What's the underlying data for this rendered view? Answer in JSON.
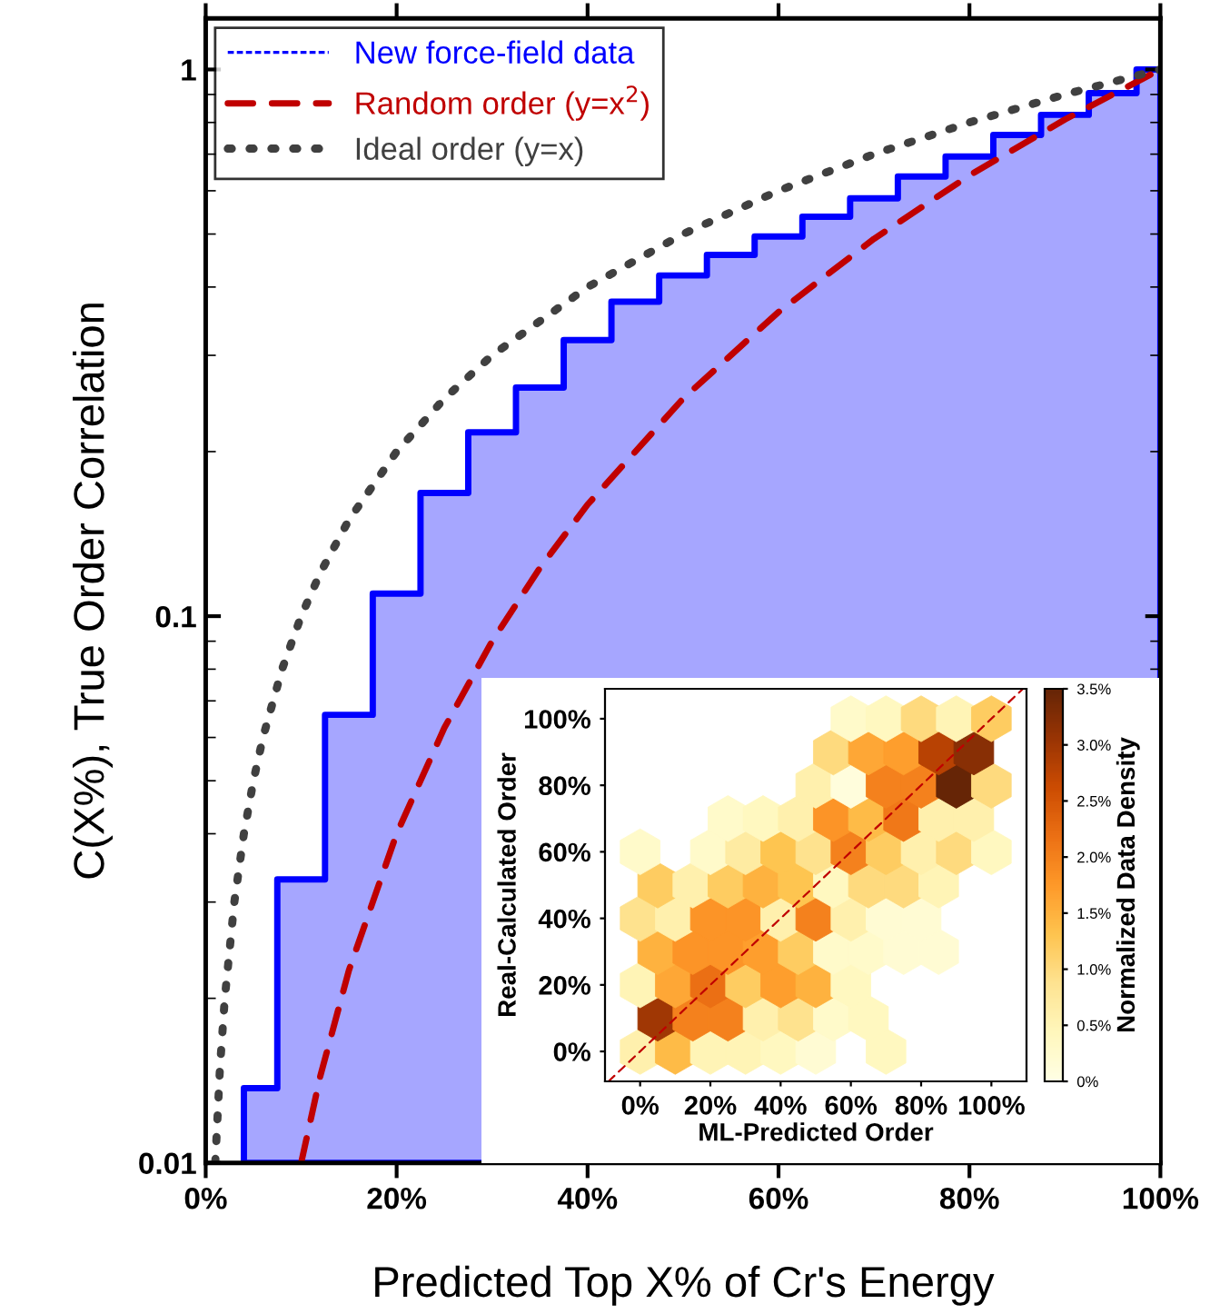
{
  "chart_data": [
    {
      "type": "step",
      "xlabel": "Predicted Top X% of Cr's Energy",
      "ylabel": "C(X%), True Order Correlation",
      "log": "y",
      "xlim": [
        0,
        100
      ],
      "ylim": [
        0.01,
        1.24
      ],
      "xticks": [
        {
          "value": 0,
          "label": "0%"
        },
        {
          "value": 20,
          "label": "20%"
        },
        {
          "value": 40,
          "label": "40%"
        },
        {
          "value": 60,
          "label": "60%"
        },
        {
          "value": 80,
          "label": "80%"
        },
        {
          "value": 100,
          "label": "100%"
        }
      ],
      "yticks": [
        0.01,
        0.1,
        1
      ],
      "legend": "top left",
      "grid": false,
      "series": [
        {
          "name": "New force-field data",
          "type": "area",
          "color": "#0000ff",
          "x": [
            4,
            7.5,
            12.5,
            17.5,
            22.5,
            27.5,
            32.5,
            37.5,
            42.5,
            47.5,
            52.5,
            57.5,
            62.5,
            67.5,
            72.5,
            77.5,
            82.5,
            87.5,
            92.5,
            97.5,
            100
          ],
          "values": [
            0.0137,
            0.033,
            0.066,
            0.11,
            0.168,
            0.217,
            0.262,
            0.32,
            0.376,
            0.42,
            0.458,
            0.495,
            0.538,
            0.581,
            0.637,
            0.693,
            0.759,
            0.826,
            0.905,
            1.0,
            1.0
          ]
        },
        {
          "name": "Random order (y=x$^{2}$)",
          "type": "line",
          "line_style": "dashed",
          "color": "#c00000",
          "x": [
            10,
            12,
            15,
            20,
            25,
            30,
            35,
            40,
            50,
            60,
            70,
            80,
            90,
            100
          ],
          "values": [
            0.01,
            0.0144,
            0.0225,
            0.04,
            0.0625,
            0.09,
            0.1225,
            0.16,
            0.25,
            0.36,
            0.49,
            0.64,
            0.81,
            1.0
          ]
        },
        {
          "name": "Ideal order (y=x)",
          "type": "line",
          "line_style": "dotted",
          "color": "#404040",
          "x": [
            1,
            1.5,
            2,
            3,
            4,
            5,
            6,
            8,
            10,
            12,
            15,
            20,
            25,
            30,
            40,
            50,
            60,
            70,
            80,
            90,
            100
          ],
          "values": [
            0.01,
            0.015,
            0.02,
            0.03,
            0.04,
            0.05,
            0.06,
            0.08,
            0.1,
            0.12,
            0.15,
            0.2,
            0.25,
            0.3,
            0.4,
            0.5,
            0.6,
            0.7,
            0.8,
            0.9,
            1.0
          ]
        }
      ]
    },
    {
      "type": "scatter",
      "xlabel": "ML-Predicted Order",
      "ylabel": "Real-Calculated Order",
      "clabel": "Normalized Data Density",
      "xlim": [
        -10,
        110
      ],
      "ylim": [
        -9,
        109
      ],
      "xticks": [
        {
          "value": 0,
          "label": "0%"
        },
        {
          "value": 20,
          "label": "20%"
        },
        {
          "value": 40,
          "label": "40%"
        },
        {
          "value": 60,
          "label": "60%"
        },
        {
          "value": 80,
          "label": "80%"
        },
        {
          "value": 100,
          "label": "100%"
        }
      ],
      "yticks": [
        {
          "value": 0,
          "label": "0%"
        },
        {
          "value": 20,
          "label": "20%"
        },
        {
          "value": 40,
          "label": "40%"
        },
        {
          "value": 60,
          "label": "60%"
        },
        {
          "value": 80,
          "label": "80%"
        },
        {
          "value": 100,
          "label": "100%"
        }
      ],
      "clim": [
        0,
        3.5
      ],
      "cticks": [
        {
          "value": 0,
          "label": "0%"
        },
        {
          "value": 0.5,
          "label": "0.5%"
        },
        {
          "value": 1,
          "label": "1.0%"
        },
        {
          "value": 1.5,
          "label": "1.5%"
        },
        {
          "value": 2,
          "label": "2.0%"
        },
        {
          "value": 2.5,
          "label": "2.5%"
        },
        {
          "value": 3,
          "label": "3.0%"
        },
        {
          "value": 3.5,
          "label": "3.5%"
        }
      ],
      "grid": false,
      "series": [
        {
          "x": [
            0,
            10,
            20,
            30,
            40,
            50,
            70,
            5,
            15,
            25,
            35,
            45,
            55,
            65,
            0,
            10,
            20,
            30,
            40,
            50,
            60,
            5,
            15,
            25,
            35,
            45,
            55,
            65,
            75,
            85,
            0,
            10,
            20,
            30,
            40,
            50,
            60,
            70,
            80,
            5,
            15,
            25,
            35,
            45,
            55,
            65,
            75,
            85,
            0,
            20,
            30,
            40,
            50,
            60,
            70,
            80,
            90,
            100,
            25,
            35,
            45,
            55,
            65,
            75,
            85,
            95,
            50,
            60,
            70,
            80,
            90,
            100,
            55,
            65,
            75,
            85,
            95,
            60,
            70,
            80,
            90,
            100
          ],
          "values": [
            0,
            0,
            0,
            0,
            0,
            0,
            0,
            10,
            10,
            10,
            10,
            10,
            10,
            10,
            20,
            20,
            20,
            20,
            20,
            20,
            20,
            30,
            30,
            30,
            30,
            30,
            30,
            30,
            30,
            30,
            40,
            40,
            40,
            40,
            40,
            40,
            40,
            40,
            40,
            50,
            50,
            50,
            50,
            50,
            50,
            50,
            50,
            50,
            60,
            60,
            60,
            60,
            60,
            60,
            60,
            60,
            60,
            60,
            70,
            70,
            70,
            70,
            70,
            70,
            70,
            70,
            80,
            80,
            80,
            80,
            80,
            80,
            90,
            90,
            90,
            90,
            90,
            100,
            100,
            100,
            100,
            100
          ],
          "colors": [
            "#fff0ac",
            "#febb47",
            "#fff4b6",
            "#fff4b6",
            "#fff8bf",
            "#fffbd2",
            "#fff8bf",
            "#a03704",
            "#f4821d",
            "#f4821d",
            "#fff0ac",
            "#fee18d",
            "#fff9c9",
            "#fff8bf",
            "#fff4b6",
            "#fea836",
            "#eb6f13",
            "#fecc60",
            "#fe9e2d",
            "#feb23f",
            "#fff8bf",
            "#feb23f",
            "#fc9427",
            "#fc9427",
            "#fe9e2d",
            "#fecc60",
            "#fff9c9",
            "#fff9c9",
            "#fffbd2",
            "#fffbd2",
            "#fee18d",
            "#fff0ac",
            "#fc9427",
            "#fc9427",
            "#fff0ac",
            "#f4821d",
            "#fff0ac",
            "#fffbd2",
            "#fffbd2",
            "#fecc60",
            "#fff0ac",
            "#fecc60",
            "#feb23f",
            "#fec551",
            "#fff8bf",
            "#feda7e",
            "#feda7e",
            "#fff4b6",
            "#fff9c9",
            "#fff9c9",
            "#feeba1",
            "#fec551",
            "#fee18d",
            "#f4821d",
            "#fecc60",
            "#fff0ac",
            "#feda7e",
            "#fff8bf",
            "#fff9c9",
            "#fff8bf",
            "#fff0ac",
            "#fc9427",
            "#febb47",
            "#f07818",
            "#fff0ac",
            "#fff0ac",
            "#fff0ac",
            "#fffddc",
            "#f4821d",
            "#f4821d",
            "#662506",
            "#feda7e",
            "#feda7e",
            "#fea836",
            "#fe9e2d",
            "#b84203",
            "#892f05",
            "#fff9c9",
            "#fff8bf",
            "#feda7e",
            "#fff4b6",
            "#fecc60"
          ],
          "cvalues": [
            0.6,
            1.4,
            0.5,
            0.5,
            0.4,
            0.2,
            0.4,
            3.0,
            2.0,
            2.0,
            0.6,
            0.9,
            0.3,
            0.4,
            0.5,
            1.6,
            2.2,
            1.2,
            1.7,
            1.5,
            0.4,
            1.5,
            1.8,
            1.8,
            1.7,
            1.2,
            0.3,
            0.3,
            0.2,
            0.2,
            0.9,
            0.6,
            1.8,
            1.8,
            0.6,
            2.0,
            0.6,
            0.2,
            0.2,
            1.2,
            0.6,
            1.2,
            1.5,
            1.3,
            0.4,
            1.0,
            1.0,
            0.5,
            0.3,
            0.3,
            0.7,
            1.3,
            0.9,
            2.0,
            1.2,
            0.6,
            1.0,
            0.4,
            0.3,
            0.4,
            0.6,
            1.8,
            1.4,
            2.1,
            0.6,
            0.6,
            0.6,
            0.1,
            2.0,
            2.0,
            3.5,
            1.0,
            1.0,
            1.6,
            1.7,
            2.8,
            3.2,
            0.3,
            0.4,
            1.0,
            0.5,
            1.2
          ]
        },
        {
          "type": "line",
          "line_style": "dashed",
          "color": "#c00000",
          "x": [
            -9,
            109
          ],
          "values": [
            -9,
            109
          ]
        }
      ]
    }
  ]
}
